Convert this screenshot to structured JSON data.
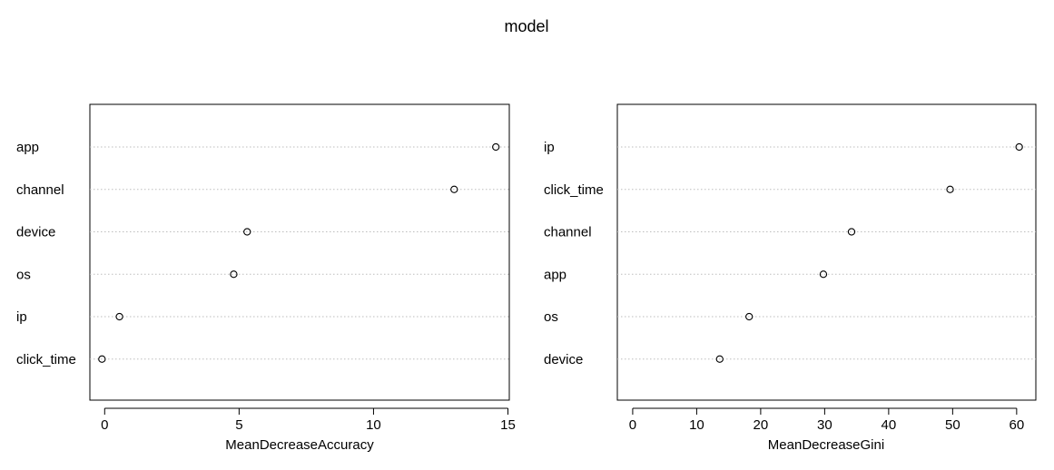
{
  "title": "model",
  "chart_data": [
    {
      "type": "scatter",
      "subtype": "dotchart",
      "categories": [
        "app",
        "channel",
        "device",
        "os",
        "ip",
        "click_time"
      ],
      "values": [
        14.55,
        13.0,
        5.3,
        4.8,
        0.55,
        -0.1
      ],
      "xlabel": "MeanDecreaseAccuracy",
      "ylabel": "",
      "xlim": [
        -0.55,
        15.05
      ],
      "xticks": [
        0,
        5,
        10,
        15
      ],
      "grid": "horizontal-dotted"
    },
    {
      "type": "scatter",
      "subtype": "dotchart",
      "categories": [
        "ip",
        "click_time",
        "channel",
        "app",
        "os",
        "device"
      ],
      "values": [
        60.4,
        49.6,
        34.2,
        29.8,
        18.2,
        13.6
      ],
      "xlabel": "MeanDecreaseGini",
      "ylabel": "",
      "xlim": [
        -2.4,
        63.0
      ],
      "xticks": [
        0,
        10,
        20,
        30,
        40,
        50,
        60
      ],
      "grid": "horizontal-dotted"
    }
  ]
}
